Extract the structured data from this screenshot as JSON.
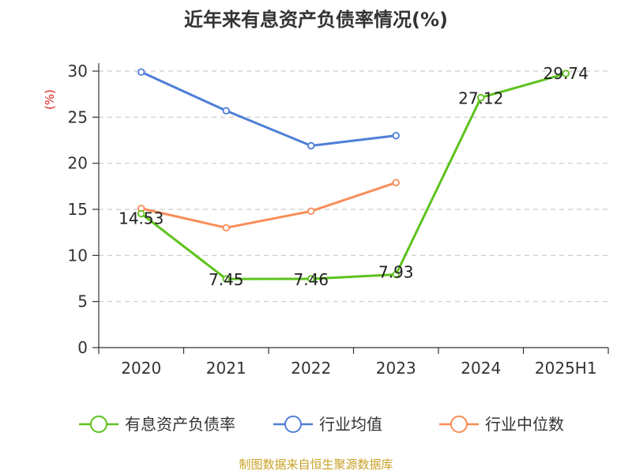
{
  "colors": {
    "debt_ratio": "#5ec21d",
    "industry_avg": "#4f7fd6",
    "industry_median": "#fa8c57",
    "grid": "#c9c9c9",
    "axis": "#333333",
    "unit": "#e0201b",
    "source": "#c9a227"
  },
  "chart_data": {
    "type": "line",
    "title": "近年来有息资产负债率情况(%)",
    "ylabel": "(%)",
    "xlabel": "",
    "categories": [
      "2020",
      "2021",
      "2022",
      "2023",
      "2024",
      "2025H1"
    ],
    "ylim": [
      0,
      30
    ],
    "yticks": [
      "0",
      "5",
      "10",
      "15",
      "20",
      "25",
      "30"
    ],
    "grid": true,
    "legend_position": "bottom",
    "series": [
      {
        "name": "有息资产负债率",
        "color_key": "debt_ratio",
        "values": [
          14.53,
          7.45,
          7.46,
          7.93,
          27.12,
          29.74
        ],
        "labels": [
          "14.53",
          "7.45",
          "7.46",
          "7.93",
          "27.12",
          "29.74"
        ]
      },
      {
        "name": "行业均值",
        "color_key": "industry_avg",
        "values": [
          29.9,
          25.7,
          21.9,
          23.0,
          null,
          null
        ]
      },
      {
        "name": "行业中位数",
        "color_key": "industry_median",
        "values": [
          15.1,
          13.0,
          14.8,
          17.9,
          null,
          null
        ]
      }
    ]
  },
  "footer": {
    "source": "制图数据来自恒生聚源数据库"
  }
}
